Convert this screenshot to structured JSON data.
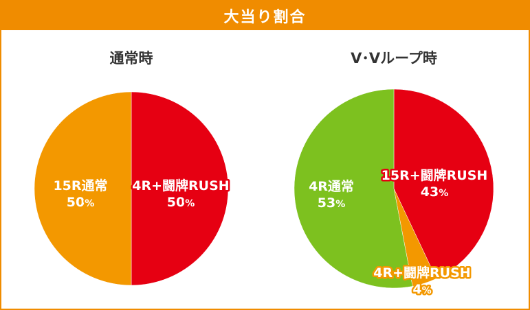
{
  "header": {
    "title": "大当り割合"
  },
  "colors": {
    "header_bg": "#f08c00",
    "rush": "#e60012",
    "normal15": "#f39800",
    "normal4": "#7dc11f",
    "rush_small": "#f39800"
  },
  "chart_data": [
    {
      "type": "pie",
      "title": "通常時",
      "slices": [
        {
          "name": "4R+闘牌RUSH",
          "value": 50,
          "value_label": "50",
          "unit": "%",
          "color": "#e60012"
        },
        {
          "name": "15R通常",
          "value": 50,
          "value_label": "50",
          "unit": "%",
          "color": "#f39800"
        }
      ]
    },
    {
      "type": "pie",
      "title": "V･Vループ時",
      "slices": [
        {
          "name": "15R+闘牌RUSH",
          "value": 43,
          "value_label": "43",
          "unit": "%",
          "color": "#e60012"
        },
        {
          "name": "4R+闘牌RUSH",
          "value": 4,
          "value_label": "4",
          "unit": "%",
          "color": "#f39800"
        },
        {
          "name": "4R通常",
          "value": 53,
          "value_label": "53",
          "unit": "%",
          "color": "#7dc11f"
        }
      ]
    }
  ]
}
